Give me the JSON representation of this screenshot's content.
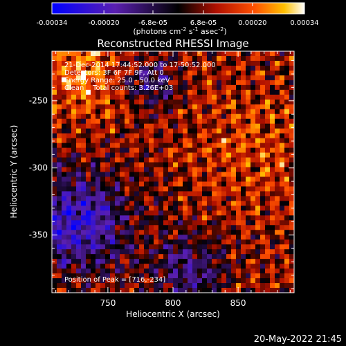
{
  "chart_data": {
    "type": "heatmap",
    "title": "Reconstructed RHESSI Image",
    "xlabel": "Heliocentric X (arcsec)",
    "ylabel": "Heliocentric Y (arcsec)",
    "x_ticks": [
      "750",
      "800",
      "850"
    ],
    "x_tick_values": [
      750,
      800,
      850
    ],
    "y_ticks": [
      "-250",
      "-300",
      "-350"
    ],
    "y_tick_values": [
      -250,
      -300,
      -350
    ],
    "xlim": [
      707,
      893
    ],
    "ylim": [
      -393,
      -213
    ],
    "colorbar": {
      "tick_labels": [
        "-0.00034",
        "-0.00020",
        "-6.8e-05",
        "6.8e-05",
        "0.00020",
        "0.00034"
      ],
      "tick_values": [
        -0.00034,
        -0.0002,
        -6.8e-05,
        6.8e-05,
        0.0002,
        0.00034
      ],
      "range": [
        -0.00034,
        0.00034
      ],
      "units_line1": "(photons cm",
      "units_sup1": "-2",
      "units_mid1": " s",
      "units_sup2": "-1",
      "units_mid2": " asec",
      "units_sup3": "-2",
      "units_end": ")"
    },
    "annotations": {
      "line1": "21-Dec-2014 17:44:52.000 to 17:50:52.000",
      "line2": "Detectors: 3F 6F 7F 9F, Att 0",
      "line3": "Energy Range: 25.0 - 50.0 keV",
      "line4": "Clean    Total counts: 3.26E+03",
      "peak": "Position of Peak = [716,-234]"
    },
    "peak_position": [
      716,
      -234
    ],
    "peak_value": 0.00034
  },
  "footer": {
    "timestamp": "20-May-2022 21:45"
  }
}
